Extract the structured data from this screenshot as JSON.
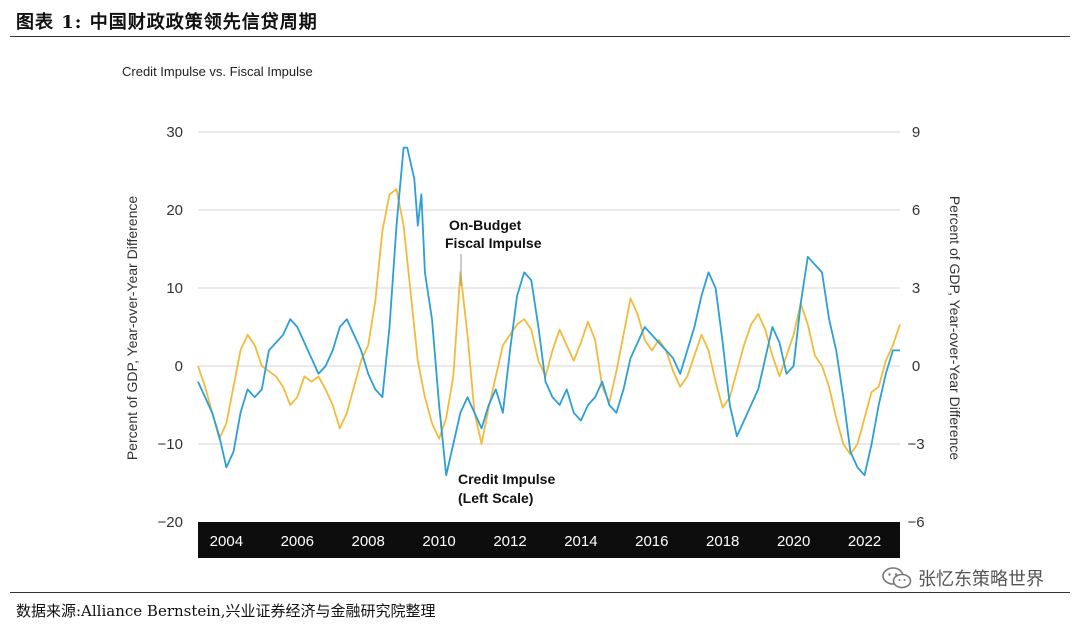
{
  "figure": {
    "title": "图表 1:   中国财政政策领先信贷周期",
    "source": "数据来源:Alliance Bernstein,兴业证券经济与金融研究院整理",
    "watermark": "张忆东策略世界",
    "watermark_icon": "wechat-icon"
  },
  "chart_data": {
    "type": "line",
    "title": "Credit Impulse vs. Fiscal Impulse",
    "ylabel_left": "Percent of GDP, Year-over-Year Difference",
    "ylabel_right": "Percent of GDP, Year-over-Year Difference",
    "ylim_left": [
      -20,
      30
    ],
    "ylim_right": [
      -6,
      9
    ],
    "yticks_left": [
      "30",
      "20",
      "10",
      "0",
      "−10",
      "−20"
    ],
    "yticks_right": [
      "9",
      "6",
      "3",
      "0",
      "−3",
      "−6"
    ],
    "xlim": [
      2003.2,
      2023.0
    ],
    "xticks": [
      "2004",
      "2006",
      "2008",
      "2010",
      "2012",
      "2014",
      "2016",
      "2018",
      "2020",
      "2022"
    ],
    "grid": "horizontal",
    "annotations": [
      {
        "text": "On-Budget",
        "series": "fiscal"
      },
      {
        "text": "Fiscal Impulse",
        "series": "fiscal"
      },
      {
        "text": "Credit Impulse",
        "series": "credit"
      },
      {
        "text": "(Left Scale)",
        "series": "credit"
      }
    ],
    "series": [
      {
        "name": "Credit Impulse",
        "axis": "left",
        "color": "#2b9fd6",
        "x": [
          2003.2,
          2003.4,
          2003.6,
          2003.8,
          2004.0,
          2004.2,
          2004.4,
          2004.6,
          2004.8,
          2005.0,
          2005.2,
          2005.4,
          2005.6,
          2005.8,
          2006.0,
          2006.2,
          2006.4,
          2006.6,
          2006.8,
          2007.0,
          2007.2,
          2007.4,
          2007.6,
          2007.8,
          2008.0,
          2008.2,
          2008.4,
          2008.6,
          2008.8,
          2009.0,
          2009.1,
          2009.3,
          2009.4,
          2009.5,
          2009.6,
          2009.8,
          2010.0,
          2010.2,
          2010.4,
          2010.6,
          2010.8,
          2011.0,
          2011.2,
          2011.4,
          2011.6,
          2011.8,
          2012.0,
          2012.2,
          2012.4,
          2012.6,
          2012.8,
          2013.0,
          2013.2,
          2013.4,
          2013.6,
          2013.8,
          2014.0,
          2014.2,
          2014.4,
          2014.6,
          2014.8,
          2015.0,
          2015.2,
          2015.4,
          2015.6,
          2015.8,
          2016.0,
          2016.2,
          2016.4,
          2016.6,
          2016.8,
          2017.0,
          2017.2,
          2017.4,
          2017.6,
          2017.8,
          2018.0,
          2018.2,
          2018.4,
          2018.6,
          2018.8,
          2019.0,
          2019.2,
          2019.4,
          2019.6,
          2019.8,
          2020.0,
          2020.2,
          2020.4,
          2020.6,
          2020.8,
          2021.0,
          2021.2,
          2021.4,
          2021.6,
          2021.8,
          2022.0,
          2022.2,
          2022.4,
          2022.6,
          2022.8,
          2023.0
        ],
        "values": [
          -2,
          -4,
          -6,
          -9,
          -13,
          -11,
          -6,
          -3,
          -4,
          -3,
          2,
          3,
          4,
          6,
          5,
          3,
          1,
          -1,
          0,
          2,
          5,
          6,
          4,
          2,
          -1,
          -3,
          -4,
          5,
          18,
          28,
          28,
          24,
          18,
          22,
          12,
          6,
          -5,
          -14,
          -10,
          -6,
          -4,
          -6,
          -8,
          -5,
          -3,
          -6,
          2,
          9,
          12,
          11,
          5,
          -2,
          -4,
          -5,
          -3,
          -6,
          -7,
          -5,
          -4,
          -2,
          -5,
          -6,
          -3,
          1,
          3,
          5,
          4,
          3,
          2,
          1,
          -1,
          2,
          5,
          9,
          12,
          10,
          3,
          -5,
          -9,
          -7,
          -5,
          -3,
          1,
          5,
          3,
          -1,
          0,
          8,
          14,
          13,
          12,
          6,
          2,
          -4,
          -11,
          -13,
          -14,
          -10,
          -5,
          -1,
          2,
          2
        ]
      },
      {
        "name": "On-Budget Fiscal Impulse",
        "axis": "right",
        "color": "#f2bb3c",
        "x": [
          2003.2,
          2003.4,
          2003.6,
          2003.8,
          2004.0,
          2004.2,
          2004.4,
          2004.6,
          2004.8,
          2005.0,
          2005.2,
          2005.4,
          2005.6,
          2005.8,
          2006.0,
          2006.2,
          2006.4,
          2006.6,
          2006.8,
          2007.0,
          2007.2,
          2007.4,
          2007.6,
          2007.8,
          2008.0,
          2008.2,
          2008.4,
          2008.6,
          2008.8,
          2009.0,
          2009.2,
          2009.4,
          2009.6,
          2009.8,
          2010.0,
          2010.2,
          2010.4,
          2010.6,
          2010.8,
          2011.0,
          2011.2,
          2011.4,
          2011.6,
          2011.8,
          2012.0,
          2012.2,
          2012.4,
          2012.6,
          2012.8,
          2013.0,
          2013.2,
          2013.4,
          2013.6,
          2013.8,
          2014.0,
          2014.2,
          2014.4,
          2014.6,
          2014.8,
          2015.0,
          2015.2,
          2015.4,
          2015.6,
          2015.8,
          2016.0,
          2016.2,
          2016.4,
          2016.6,
          2016.8,
          2017.0,
          2017.2,
          2017.4,
          2017.6,
          2017.8,
          2018.0,
          2018.2,
          2018.4,
          2018.6,
          2018.8,
          2019.0,
          2019.2,
          2019.4,
          2019.6,
          2019.8,
          2020.0,
          2020.2,
          2020.4,
          2020.6,
          2020.8,
          2021.0,
          2021.2,
          2021.4,
          2021.6,
          2021.8,
          2022.0,
          2022.2,
          2022.4,
          2022.6,
          2022.8,
          2023.0
        ],
        "values": [
          0,
          -0.8,
          -1.8,
          -2.8,
          -2.2,
          -0.8,
          0.6,
          1.2,
          0.8,
          0,
          -0.2,
          -0.4,
          -0.8,
          -1.5,
          -1.2,
          -0.4,
          -0.6,
          -0.4,
          -0.9,
          -1.5,
          -2.4,
          -1.8,
          -0.8,
          0.2,
          0.8,
          2.5,
          5.2,
          6.6,
          6.8,
          5.4,
          2.8,
          0.2,
          -1.2,
          -2.2,
          -2.8,
          -2.0,
          -0.4,
          3.6,
          1.2,
          -1.8,
          -3.0,
          -1.6,
          -0.4,
          0.8,
          1.2,
          1.6,
          1.8,
          1.4,
          0.2,
          -0.4,
          0.6,
          1.4,
          0.8,
          0.2,
          0.9,
          1.7,
          1.0,
          -0.8,
          -1.4,
          -0.2,
          1.2,
          2.6,
          2.0,
          1.0,
          0.6,
          1.0,
          0.6,
          -0.2,
          -0.8,
          -0.4,
          0.4,
          1.2,
          0.6,
          -0.6,
          -1.6,
          -1.2,
          -0.2,
          0.8,
          1.6,
          2.0,
          1.4,
          0.4,
          -0.4,
          0.4,
          1.2,
          2.4,
          1.6,
          0.4,
          0,
          -0.8,
          -2.0,
          -3.0,
          -3.4,
          -3.0,
          -2.0,
          -1.0,
          -0.8,
          0.2,
          0.8,
          1.6
        ]
      }
    ]
  }
}
